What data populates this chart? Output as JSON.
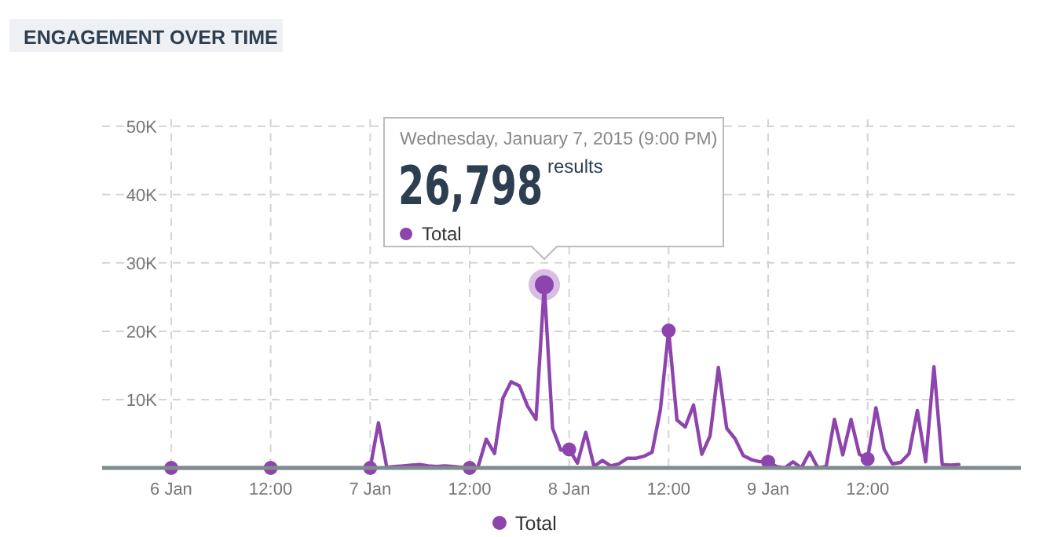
{
  "chart_data": {
    "type": "line",
    "title": "ENGAGEMENT OVER TIME",
    "x": [
      "2015-01-06T00:00",
      "2015-01-06T12:00",
      "2015-01-07T00:00",
      "2015-01-07T01:00",
      "2015-01-07T02:00",
      "2015-01-07T03:00",
      "2015-01-07T04:00",
      "2015-01-07T05:00",
      "2015-01-07T06:00",
      "2015-01-07T07:00",
      "2015-01-07T08:00",
      "2015-01-07T09:00",
      "2015-01-07T10:00",
      "2015-01-07T11:00",
      "2015-01-07T12:00",
      "2015-01-07T13:00",
      "2015-01-07T14:00",
      "2015-01-07T15:00",
      "2015-01-07T16:00",
      "2015-01-07T17:00",
      "2015-01-07T18:00",
      "2015-01-07T19:00",
      "2015-01-07T20:00",
      "2015-01-07T21:00",
      "2015-01-07T22:00",
      "2015-01-07T23:00",
      "2015-01-08T00:00",
      "2015-01-08T01:00",
      "2015-01-08T02:00",
      "2015-01-08T03:00",
      "2015-01-08T04:00",
      "2015-01-08T05:00",
      "2015-01-08T06:00",
      "2015-01-08T07:00",
      "2015-01-08T08:00",
      "2015-01-08T09:00",
      "2015-01-08T10:00",
      "2015-01-08T11:00",
      "2015-01-08T12:00",
      "2015-01-08T13:00",
      "2015-01-08T14:00",
      "2015-01-08T15:00",
      "2015-01-08T16:00",
      "2015-01-08T17:00",
      "2015-01-08T18:00",
      "2015-01-08T19:00",
      "2015-01-08T20:00",
      "2015-01-08T21:00",
      "2015-01-08T22:00",
      "2015-01-08T23:00",
      "2015-01-09T00:00",
      "2015-01-09T01:00",
      "2015-01-09T02:00",
      "2015-01-09T03:00",
      "2015-01-09T04:00",
      "2015-01-09T05:00",
      "2015-01-09T06:00",
      "2015-01-09T07:00",
      "2015-01-09T08:00",
      "2015-01-09T09:00",
      "2015-01-09T10:00",
      "2015-01-09T11:00",
      "2015-01-09T12:00",
      "2015-01-09T13:00",
      "2015-01-09T14:00",
      "2015-01-09T15:00",
      "2015-01-09T16:00",
      "2015-01-09T17:00",
      "2015-01-09T18:00",
      "2015-01-09T19:00",
      "2015-01-09T20:00",
      "2015-01-09T21:00",
      "2015-01-09T22:00",
      "2015-01-09T23:00"
    ],
    "series": [
      {
        "name": "Total",
        "color": "#8e44ad",
        "values": [
          0,
          0,
          0,
          6600,
          100,
          200,
          300,
          400,
          500,
          300,
          200,
          300,
          200,
          100,
          0,
          100,
          4200,
          2100,
          10200,
          12600,
          12000,
          9000,
          7100,
          26798,
          5800,
          2600,
          2700,
          700,
          5200,
          200,
          1100,
          300,
          600,
          1400,
          1400,
          1700,
          2300,
          8500,
          20100,
          7000,
          6000,
          9200,
          2000,
          4700,
          14700,
          5800,
          4300,
          1800,
          1200,
          900,
          900,
          200,
          0,
          900,
          0,
          2300,
          0,
          200,
          7100,
          1900,
          7100,
          2000,
          1300,
          8800,
          2700,
          600,
          800,
          2100,
          8400,
          900,
          14800,
          500,
          400,
          500
        ]
      },
      {
        "type": "scatter",
        "color": "#8e44ad",
        "marker": "circle",
        "x": [
          "2015-01-06T00:00",
          "2015-01-06T12:00",
          "2015-01-07T00:00",
          "2015-01-07T12:00",
          "2015-01-08T00:00",
          "2015-01-08T12:00",
          "2015-01-09T00:00",
          "2015-01-09T12:00"
        ],
        "values": [
          0,
          0,
          0,
          0,
          2700,
          20100,
          900,
          1300
        ]
      }
    ],
    "xlim": [
      "2015-01-05T15:40",
      "2015-01-10T06:30"
    ],
    "xticks": [
      {
        "value": "2015-01-06T00:00",
        "label": "6 Jan"
      },
      {
        "value": "2015-01-06T12:00",
        "label": "12:00"
      },
      {
        "value": "2015-01-07T00:00",
        "label": "7 Jan"
      },
      {
        "value": "2015-01-07T12:00",
        "label": "12:00"
      },
      {
        "value": "2015-01-08T00:00",
        "label": "8 Jan"
      },
      {
        "value": "2015-01-08T12:00",
        "label": "12:00"
      },
      {
        "value": "2015-01-09T00:00",
        "label": "9 Jan"
      },
      {
        "value": "2015-01-09T12:00",
        "label": "12:00"
      }
    ],
    "ylim": [
      0,
      51000
    ],
    "yticks": [
      {
        "value": 10000,
        "label": "10K"
      },
      {
        "value": 20000,
        "label": "20K"
      },
      {
        "value": 30000,
        "label": "30K"
      },
      {
        "value": 40000,
        "label": "40K"
      },
      {
        "value": 50000,
        "label": "50K"
      }
    ],
    "grid": true,
    "legend": "bottom",
    "line_style": "solid",
    "annotations": [
      "Wednesday, January 7, 2015 (9:00 PM)",
      "26,798",
      "results",
      "Total"
    ]
  }
}
